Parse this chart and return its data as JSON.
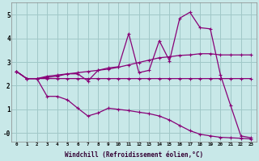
{
  "xlabel": "Windchill (Refroidissement éolien,°C)",
  "bg_color": "#c8e8e8",
  "grid_color": "#a0c8c8",
  "line_color": "#880077",
  "xlim": [
    -0.5,
    23.5
  ],
  "ylim": [
    -0.35,
    5.5
  ],
  "series1_x": [
    0,
    1,
    2,
    3,
    4,
    5,
    6,
    7,
    8,
    9,
    10,
    11,
    12,
    13,
    14,
    15,
    16,
    17,
    18,
    19,
    20,
    21,
    22,
    23
  ],
  "series1_y": [
    2.6,
    2.3,
    2.3,
    2.3,
    2.3,
    2.3,
    2.3,
    2.3,
    2.3,
    2.3,
    2.3,
    2.3,
    2.3,
    2.3,
    2.3,
    2.3,
    2.3,
    2.3,
    2.3,
    2.3,
    2.3,
    2.3,
    2.3,
    2.3
  ],
  "series2_x": [
    0,
    1,
    2,
    3,
    4,
    5,
    6,
    7,
    8,
    9,
    10,
    11,
    12,
    13,
    14,
    15,
    16,
    17,
    18,
    19,
    20,
    21,
    22,
    23
  ],
  "series2_y": [
    2.6,
    2.3,
    2.3,
    1.55,
    1.55,
    1.4,
    1.05,
    0.72,
    0.85,
    1.05,
    1.0,
    0.95,
    0.88,
    0.82,
    0.72,
    0.55,
    0.32,
    0.1,
    -0.05,
    -0.12,
    -0.18,
    -0.2,
    -0.22,
    -0.25
  ],
  "series3_x": [
    0,
    1,
    2,
    3,
    4,
    5,
    6,
    7,
    8,
    9,
    10,
    11,
    12,
    13,
    14,
    15,
    16,
    17,
    18,
    19,
    20,
    21,
    22,
    23
  ],
  "series3_y": [
    2.6,
    2.3,
    2.3,
    2.35,
    2.4,
    2.5,
    2.5,
    2.2,
    2.65,
    2.75,
    2.8,
    4.2,
    2.55,
    2.65,
    3.9,
    3.05,
    4.85,
    5.1,
    4.45,
    4.4,
    2.45,
    1.15,
    -0.12,
    -0.2
  ],
  "series4_x": [
    0,
    1,
    2,
    3,
    4,
    5,
    6,
    7,
    8,
    9,
    10,
    11,
    12,
    13,
    14,
    15,
    16,
    17,
    18,
    19,
    20,
    21,
    22,
    23
  ],
  "series4_y": [
    2.6,
    2.3,
    2.3,
    2.4,
    2.45,
    2.5,
    2.55,
    2.6,
    2.65,
    2.7,
    2.78,
    2.88,
    2.98,
    3.08,
    3.18,
    3.22,
    3.28,
    3.3,
    3.35,
    3.35,
    3.3,
    3.3,
    3.3,
    3.3
  ]
}
